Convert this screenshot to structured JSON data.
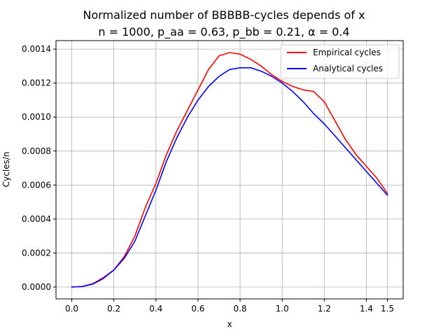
{
  "chart_data": {
    "type": "line",
    "title": "Normalized number of BBBBB-cycles depends of x",
    "subtitle": "n = 1000, p_aa = 0.63, p_bb = 0.21, α = 0.4",
    "xlabel": "x",
    "ylabel": "Cycles/n",
    "xlim": [
      -0.075,
      1.575
    ],
    "ylim": [
      -7e-05,
      0.00145
    ],
    "x_ticks": [
      0.0,
      0.2,
      0.4,
      0.6,
      0.8,
      1.0,
      1.2,
      1.4,
      1.5
    ],
    "x_tick_labels": [
      "0.0",
      "0.2",
      "0.4",
      "0.6",
      "0.8",
      "1.0",
      "1.2",
      "1.4",
      "1.5"
    ],
    "y_ticks": [
      0.0,
      0.0002,
      0.0004,
      0.0006,
      0.0008,
      0.001,
      0.0012,
      0.0014
    ],
    "y_tick_labels": [
      "0.0000",
      "0.0002",
      "0.0004",
      "0.0006",
      "0.0008",
      "0.0010",
      "0.0012",
      "0.0014"
    ],
    "grid": true,
    "legend_position": "top-right",
    "series": [
      {
        "name": "Empirical cycles",
        "color": "#ff0000",
        "x": [
          0.0,
          0.05,
          0.1,
          0.15,
          0.2,
          0.25,
          0.3,
          0.35,
          0.4,
          0.45,
          0.5,
          0.55,
          0.6,
          0.65,
          0.7,
          0.75,
          0.8,
          0.85,
          0.9,
          0.95,
          1.0,
          1.05,
          1.1,
          1.15,
          1.2,
          1.25,
          1.3,
          1.35,
          1.4,
          1.45,
          1.5
        ],
        "y": [
          0.0,
          3e-06,
          2e-05,
          5.5e-05,
          0.0001,
          0.00018,
          0.0003,
          0.00047,
          0.00061,
          0.00078,
          0.00092,
          0.00104,
          0.00116,
          0.00128,
          0.00136,
          0.00138,
          0.00137,
          0.00134,
          0.0013,
          0.00125,
          0.00121,
          0.00118,
          0.00116,
          0.00115,
          0.00109,
          0.00098,
          0.00087,
          0.00078,
          0.00071,
          0.00064,
          0.00055
        ]
      },
      {
        "name": "Analytical cycles",
        "color": "#0000ff",
        "x": [
          0.0,
          0.05,
          0.1,
          0.15,
          0.2,
          0.25,
          0.3,
          0.35,
          0.4,
          0.45,
          0.5,
          0.55,
          0.6,
          0.65,
          0.7,
          0.75,
          0.8,
          0.85,
          0.9,
          0.95,
          1.0,
          1.05,
          1.1,
          1.15,
          1.2,
          1.25,
          1.3,
          1.35,
          1.4,
          1.45,
          1.5
        ],
        "y": [
          0.0,
          3e-06,
          1.7e-05,
          5e-05,
          0.0001,
          0.00017,
          0.00027,
          0.00042,
          0.00057,
          0.00074,
          0.00088,
          0.001,
          0.0011,
          0.00118,
          0.00124,
          0.00128,
          0.00129,
          0.00129,
          0.00127,
          0.00124,
          0.0012,
          0.00115,
          0.00109,
          0.00102,
          0.00096,
          0.00089,
          0.00082,
          0.00075,
          0.00068,
          0.00061,
          0.00054
        ]
      }
    ]
  }
}
